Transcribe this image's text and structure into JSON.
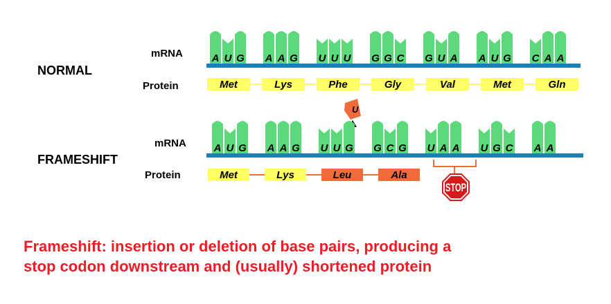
{
  "colors": {
    "tooth": "#5cd97b",
    "strand": "#1a7fb5",
    "normal_protein": "#ffff66",
    "frameshift_protein": "#f26b3a",
    "stop_sign": "#d41a1a",
    "caption": "#ee1c25"
  },
  "labels": {
    "normal": "NORMAL",
    "frameshift": "FRAMESHIFT",
    "mrna": "mRNA",
    "protein": "Protein"
  },
  "normal": {
    "bases": [
      "A",
      "U",
      "G",
      "A",
      "A",
      "G",
      "U",
      "U",
      "U",
      "G",
      "G",
      "C",
      "G",
      "U",
      "A",
      "A",
      "U",
      "G",
      "C",
      "A",
      "A"
    ],
    "residues": [
      "Met",
      "Lys",
      "Phe",
      "Gly",
      "Val",
      "Met",
      "Gln"
    ]
  },
  "frameshift": {
    "bases": [
      "A",
      "U",
      "G",
      "A",
      "A",
      "G",
      "U",
      "U",
      "G",
      "G",
      "C",
      "G",
      "U",
      "A",
      "A",
      "U",
      "G",
      "C",
      "A",
      "A"
    ],
    "residues": [
      "Met",
      "Lys",
      "Leu",
      "Ala"
    ],
    "residue_colors": [
      "yellow",
      "yellow",
      "orange",
      "orange"
    ],
    "inserted_base": "U",
    "stop_label": "STOP"
  },
  "caption": {
    "line1": "Frameshift: insertion or deletion of base pairs, producing a",
    "line2": "stop codon downstream and (usually) shortened protein"
  }
}
